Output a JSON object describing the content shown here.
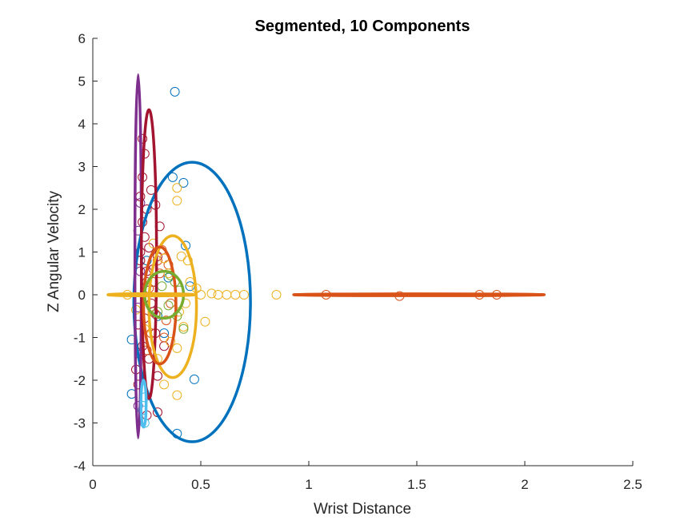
{
  "chart_data": {
    "type": "scatter",
    "title": "Segmented, 10 Components",
    "xlabel": "Wrist Distance",
    "ylabel": "Z Angular Velocity",
    "xlim": [
      0,
      2.5
    ],
    "ylim": [
      -4,
      6
    ],
    "xticks": [
      0,
      0.5,
      1,
      1.5,
      2,
      2.5
    ],
    "xtick_labels": [
      "0",
      "0.5",
      "1",
      "1.5",
      "2",
      "2.5"
    ],
    "yticks": [
      -4,
      -3,
      -2,
      -1,
      0,
      1,
      2,
      3,
      4,
      5,
      6
    ],
    "ytick_labels": [
      "-4",
      "-3",
      "-2",
      "-1",
      "0",
      "1",
      "2",
      "3",
      "4",
      "5",
      "6"
    ],
    "grid": false,
    "legend": "none",
    "colors": {
      "blue": "#0072BD",
      "orange": "#D95319",
      "yellow": "#EDB120",
      "purple": "#7E2F8E",
      "green": "#77AC30",
      "cyan": "#4DBEEE",
      "darkred": "#A2142F"
    },
    "ellipses": [
      {
        "color": "#0072BD",
        "cx": 0.46,
        "cy": -0.17,
        "rx": 0.27,
        "ry": 3.27
      },
      {
        "color": "#7E2F8E",
        "cx": 0.21,
        "cy": 0.9,
        "rx": 0.015,
        "ry": 4.25
      },
      {
        "color": "#A2142F",
        "cx": 0.26,
        "cy": 0.95,
        "rx": 0.035,
        "ry": 3.38
      },
      {
        "color": "#EDB120",
        "cx": 0.37,
        "cy": -0.28,
        "rx": 0.11,
        "ry": 1.66
      },
      {
        "color": "#D95319",
        "cx": 0.31,
        "cy": -0.25,
        "rx": 0.075,
        "ry": 1.37
      },
      {
        "color": "#77AC30",
        "cx": 0.33,
        "cy": 0.0,
        "rx": 0.09,
        "ry": 0.55
      },
      {
        "color": "#4DBEEE",
        "cx": 0.235,
        "cy": -2.55,
        "rx": 0.012,
        "ry": 0.55
      },
      {
        "color": "#EDB120",
        "cx": 0.27,
        "cy": 0.0,
        "rx": 0.2,
        "ry": 0.025
      },
      {
        "color": "#D95319",
        "cx": 1.51,
        "cy": 0.0,
        "rx": 0.58,
        "ry": 0.022
      }
    ],
    "series": [
      {
        "color": "#0072BD",
        "points": [
          [
            0.38,
            4.75
          ],
          [
            0.37,
            2.75
          ],
          [
            0.42,
            2.62
          ],
          [
            0.43,
            1.15
          ],
          [
            0.47,
            -1.98
          ],
          [
            0.39,
            -3.25
          ],
          [
            0.18,
            -2.32
          ],
          [
            0.18,
            -1.05
          ],
          [
            0.35,
            0.4
          ],
          [
            0.3,
            -0.5
          ],
          [
            0.25,
            0.8
          ],
          [
            0.33,
            -0.9
          ],
          [
            0.45,
            0.2
          ],
          [
            0.28,
            0.1
          ]
        ]
      },
      {
        "color": "#A2142F",
        "points": [
          [
            0.23,
            3.65
          ],
          [
            0.24,
            3.3
          ],
          [
            0.23,
            2.75
          ],
          [
            0.27,
            2.45
          ],
          [
            0.22,
            2.3
          ],
          [
            0.25,
            2.0
          ],
          [
            0.23,
            1.7
          ],
          [
            0.24,
            1.35
          ],
          [
            0.26,
            1.1
          ],
          [
            0.22,
            0.8
          ],
          [
            0.28,
            0.6
          ],
          [
            0.25,
            0.3
          ],
          [
            0.27,
            -0.2
          ],
          [
            0.24,
            -0.55
          ],
          [
            0.29,
            -0.9
          ],
          [
            0.23,
            -1.2
          ],
          [
            0.26,
            -1.5
          ],
          [
            0.3,
            -1.9
          ],
          [
            0.21,
            -2.1
          ],
          [
            0.3,
            -2.75
          ],
          [
            0.25,
            -2.82
          ],
          [
            0.2,
            -1.75
          ],
          [
            0.31,
            1.6
          ],
          [
            0.29,
            2.1
          ],
          [
            0.22,
            1.0
          ],
          [
            0.28,
            -0.4
          ],
          [
            0.25,
            0.55
          ],
          [
            0.33,
            -1.2
          ],
          [
            0.3,
            0.9
          ],
          [
            0.21,
            -0.7
          ]
        ]
      },
      {
        "color": "#7E2F8E",
        "points": [
          [
            0.22,
            2.15
          ],
          [
            0.21,
            1.5
          ],
          [
            0.22,
            0.55
          ],
          [
            0.21,
            -0.3
          ],
          [
            0.22,
            -1.4
          ],
          [
            0.21,
            -2.6
          ]
        ]
      },
      {
        "color": "#D95319",
        "points": [
          [
            1.08,
            0.0
          ],
          [
            1.42,
            -0.03
          ],
          [
            1.79,
            0.0
          ],
          [
            1.87,
            0.0
          ],
          [
            0.3,
            0.8
          ],
          [
            0.34,
            -0.6
          ],
          [
            0.27,
            -0.9
          ],
          [
            0.32,
            1.05
          ],
          [
            0.28,
            0.3
          ],
          [
            0.36,
            -0.2
          ],
          [
            0.25,
            -1.3
          ],
          [
            0.31,
            0.5
          ],
          [
            0.29,
            -0.45
          ],
          [
            0.35,
            0.7
          ],
          [
            0.26,
            0.15
          ],
          [
            0.33,
            -1.0
          ]
        ]
      },
      {
        "color": "#EDB120",
        "points": [
          [
            0.39,
            2.5
          ],
          [
            0.39,
            2.2
          ],
          [
            0.41,
            0.9
          ],
          [
            0.44,
            0.8
          ],
          [
            0.52,
            -0.63
          ],
          [
            0.39,
            -1.25
          ],
          [
            0.33,
            -2.1
          ],
          [
            0.39,
            -2.35
          ],
          [
            0.42,
            -0.75
          ],
          [
            0.85,
            0.0
          ],
          [
            0.7,
            0.0
          ],
          [
            0.66,
            0.0
          ],
          [
            0.62,
            0.0
          ],
          [
            0.58,
            0.0
          ],
          [
            0.55,
            0.03
          ],
          [
            0.5,
            0.0
          ],
          [
            0.16,
            0.0
          ],
          [
            0.2,
            -0.35
          ],
          [
            0.35,
            0.5
          ],
          [
            0.3,
            -1.5
          ],
          [
            0.45,
            0.3
          ],
          [
            0.4,
            -0.4
          ],
          [
            0.28,
            1.2
          ],
          [
            0.36,
            -1.1
          ],
          [
            0.43,
            -0.2
          ],
          [
            0.48,
            0.15
          ],
          [
            0.33,
            0.85
          ],
          [
            0.24,
            -0.8
          ]
        ]
      },
      {
        "color": "#77AC30",
        "points": [
          [
            0.38,
            0.3
          ],
          [
            0.35,
            -0.25
          ],
          [
            0.4,
            0.1
          ],
          [
            0.3,
            -0.4
          ],
          [
            0.42,
            -0.8
          ],
          [
            0.36,
            0.45
          ],
          [
            0.32,
            0.2
          ],
          [
            0.39,
            -0.5
          ]
        ]
      },
      {
        "color": "#4DBEEE",
        "points": [
          [
            0.24,
            -2.4
          ],
          [
            0.23,
            -2.7
          ],
          [
            0.24,
            -3.0
          ]
        ]
      }
    ]
  }
}
